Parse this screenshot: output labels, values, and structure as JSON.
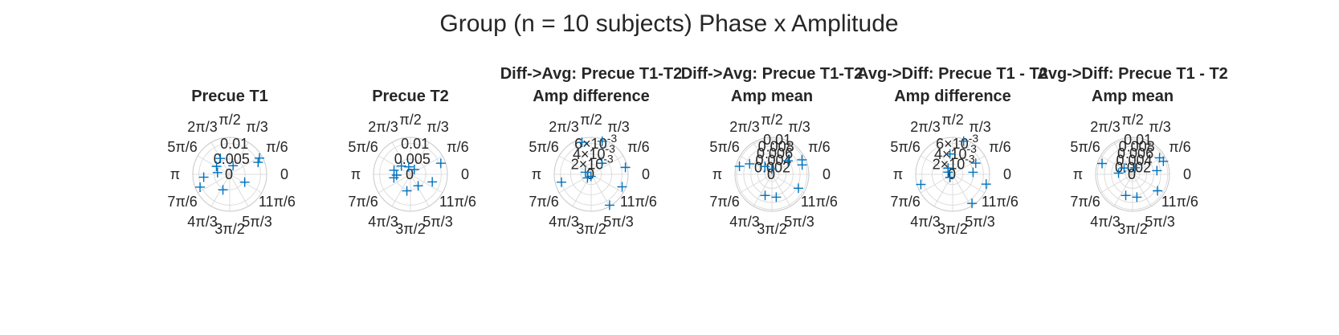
{
  "figure": {
    "title": "Group (n = 10 subjects) Phase x Amplitude"
  },
  "chart_data": [
    {
      "type": "scatter",
      "projection": "polar",
      "title": [
        "",
        "Precue T1"
      ],
      "theta_ticks": [
        "0",
        "π/6",
        "π/3",
        "π/2",
        "2π/3",
        "5π/6",
        "π",
        "7π/6",
        "4π/3",
        "3π/2",
        "5π/3",
        "11π/6"
      ],
      "r_ticks": [
        "0",
        "0.005",
        "0.01"
      ],
      "rlim": [
        0,
        0.012
      ],
      "points": [
        {
          "theta": 0.4,
          "r": 0.01
        },
        {
          "theta": 0.5,
          "r": 0.011
        },
        {
          "theta": 2.1,
          "r": 0.006
        },
        {
          "theta": 2.6,
          "r": 0.005
        },
        {
          "theta": 3.0,
          "r": 0.004
        },
        {
          "theta": 3.25,
          "r": 0.0085
        },
        {
          "theta": 3.55,
          "r": 0.0105
        },
        {
          "theta": 4.3,
          "r": 0.0055
        },
        {
          "theta": 5.8,
          "r": 0.0055
        },
        {
          "theta": 1.2,
          "r": 0.003
        }
      ]
    },
    {
      "type": "scatter",
      "projection": "polar",
      "title": [
        "",
        "Precue T2"
      ],
      "theta_ticks": [
        "0",
        "π/6",
        "π/3",
        "π/2",
        "2π/3",
        "5π/6",
        "π",
        "7π/6",
        "4π/3",
        "3π/2",
        "5π/3",
        "11π/6"
      ],
      "r_ticks": [
        "0",
        "0.005",
        "0.01"
      ],
      "rlim": [
        0,
        0.012
      ],
      "points": [
        {
          "theta": 0.35,
          "r": 0.0105
        },
        {
          "theta": 2.4,
          "r": 0.004
        },
        {
          "theta": 2.9,
          "r": 0.0055
        },
        {
          "theta": 3.2,
          "r": 0.0045
        },
        {
          "theta": 3.35,
          "r": 0.0055
        },
        {
          "theta": 4.5,
          "r": 0.0055
        },
        {
          "theta": 5.3,
          "r": 0.0045
        },
        {
          "theta": 5.95,
          "r": 0.0075
        },
        {
          "theta": 1.8,
          "r": 0.0025
        },
        {
          "theta": 0.9,
          "r": 0.002
        }
      ]
    },
    {
      "type": "scatter",
      "projection": "polar",
      "title": [
        "Diff->Avg: Precue T1-T2",
        "Amp difference"
      ],
      "theta_ticks": [
        "0",
        "π/6",
        "π/3",
        "π/2",
        "2π/3",
        "5π/6",
        "π",
        "7π/6",
        "4π/3",
        "3π/2",
        "5π/3",
        "11π/6"
      ],
      "r_ticks": [
        "0",
        "2×10-3",
        "4×10-3",
        "6×10-3"
      ],
      "rlim": [
        0,
        0.0072
      ],
      "points": [
        {
          "theta": 1.25,
          "r": 0.0068
        },
        {
          "theta": 1.85,
          "r": 0.0065
        },
        {
          "theta": 0.8,
          "r": 0.003
        },
        {
          "theta": 2.8,
          "r": 0.0012
        },
        {
          "theta": 3.4,
          "r": 0.006
        },
        {
          "theta": 3.9,
          "r": 0.001
        },
        {
          "theta": 5.25,
          "r": 0.007
        },
        {
          "theta": 5.9,
          "r": 0.0065
        },
        {
          "theta": 0.2,
          "r": 0.0068
        },
        {
          "theta": 4.6,
          "r": 0.0004
        }
      ]
    },
    {
      "type": "scatter",
      "projection": "polar",
      "title": [
        "Diff->Avg: Precue T1-T2",
        "Amp mean"
      ],
      "theta_ticks": [
        "0",
        "π/6",
        "π/3",
        "π/2",
        "2π/3",
        "5π/6",
        "π",
        "7π/6",
        "4π/3",
        "3π/2",
        "5π/3",
        "11π/6"
      ],
      "r_ticks": [
        "0",
        "0.002",
        "0.004",
        "0.006",
        "0.008",
        "0.01"
      ],
      "rlim": [
        0,
        0.0105
      ],
      "points": [
        {
          "theta": 0.45,
          "r": 0.0095
        },
        {
          "theta": 0.3,
          "r": 0.009
        },
        {
          "theta": 2.9,
          "r": 0.0095
        },
        {
          "theta": 2.7,
          "r": 0.007
        },
        {
          "theta": 2.3,
          "r": 0.003
        },
        {
          "theta": 4.4,
          "r": 0.0063
        },
        {
          "theta": 4.9,
          "r": 0.0066
        },
        {
          "theta": 5.8,
          "r": 0.0085
        },
        {
          "theta": 0.7,
          "r": 0.006
        },
        {
          "theta": 1.6,
          "r": 0.0015
        }
      ]
    },
    {
      "type": "scatter",
      "projection": "polar",
      "title": [
        "Avg->Diff: Precue T1 - T2",
        "Amp difference"
      ],
      "theta_ticks": [
        "0",
        "π/6",
        "π/3",
        "π/2",
        "2π/3",
        "5π/6",
        "π",
        "7π/6",
        "4π/3",
        "3π/2",
        "5π/3",
        "11π/6"
      ],
      "r_ticks": [
        "0",
        "2×10-3",
        "4×10-3",
        "6×10-3"
      ],
      "rlim": [
        0,
        0.0072
      ],
      "points": [
        {
          "theta": 1.25,
          "r": 0.0068
        },
        {
          "theta": 2.2,
          "r": 0.0015
        },
        {
          "theta": 2.7,
          "r": 0.001
        },
        {
          "theta": 3.45,
          "r": 0.0065
        },
        {
          "theta": 5.3,
          "r": 0.0068
        },
        {
          "theta": 6.0,
          "r": 0.0068
        },
        {
          "theta": 0.45,
          "r": 0.005
        },
        {
          "theta": 0.1,
          "r": 0.004
        },
        {
          "theta": 4.0,
          "r": 0.0008
        },
        {
          "theta": 1.7,
          "r": 0.004
        }
      ]
    },
    {
      "type": "scatter",
      "projection": "polar",
      "title": [
        "Avg->Diff: Precue T1 - T2",
        "Amp mean"
      ],
      "theta_ticks": [
        "0",
        "π/6",
        "π/3",
        "π/2",
        "2π/3",
        "5π/6",
        "π",
        "7π/6",
        "4π/3",
        "3π/2",
        "5π/3",
        "11π/6"
      ],
      "r_ticks": [
        "0",
        "0.002",
        "0.004",
        "0.006",
        "0.008",
        "0.01"
      ],
      "rlim": [
        0,
        0.0105
      ],
      "points": [
        {
          "theta": 0.4,
          "r": 0.0095
        },
        {
          "theta": 0.55,
          "r": 0.009
        },
        {
          "theta": 2.8,
          "r": 0.0092
        },
        {
          "theta": 2.5,
          "r": 0.003
        },
        {
          "theta": 4.4,
          "r": 0.0063
        },
        {
          "theta": 4.9,
          "r": 0.0066
        },
        {
          "theta": 5.7,
          "r": 0.0085
        },
        {
          "theta": 0.15,
          "r": 0.007
        },
        {
          "theta": 3.05,
          "r": 0.004
        },
        {
          "theta": 1.2,
          "r": 0.002
        }
      ]
    }
  ]
}
